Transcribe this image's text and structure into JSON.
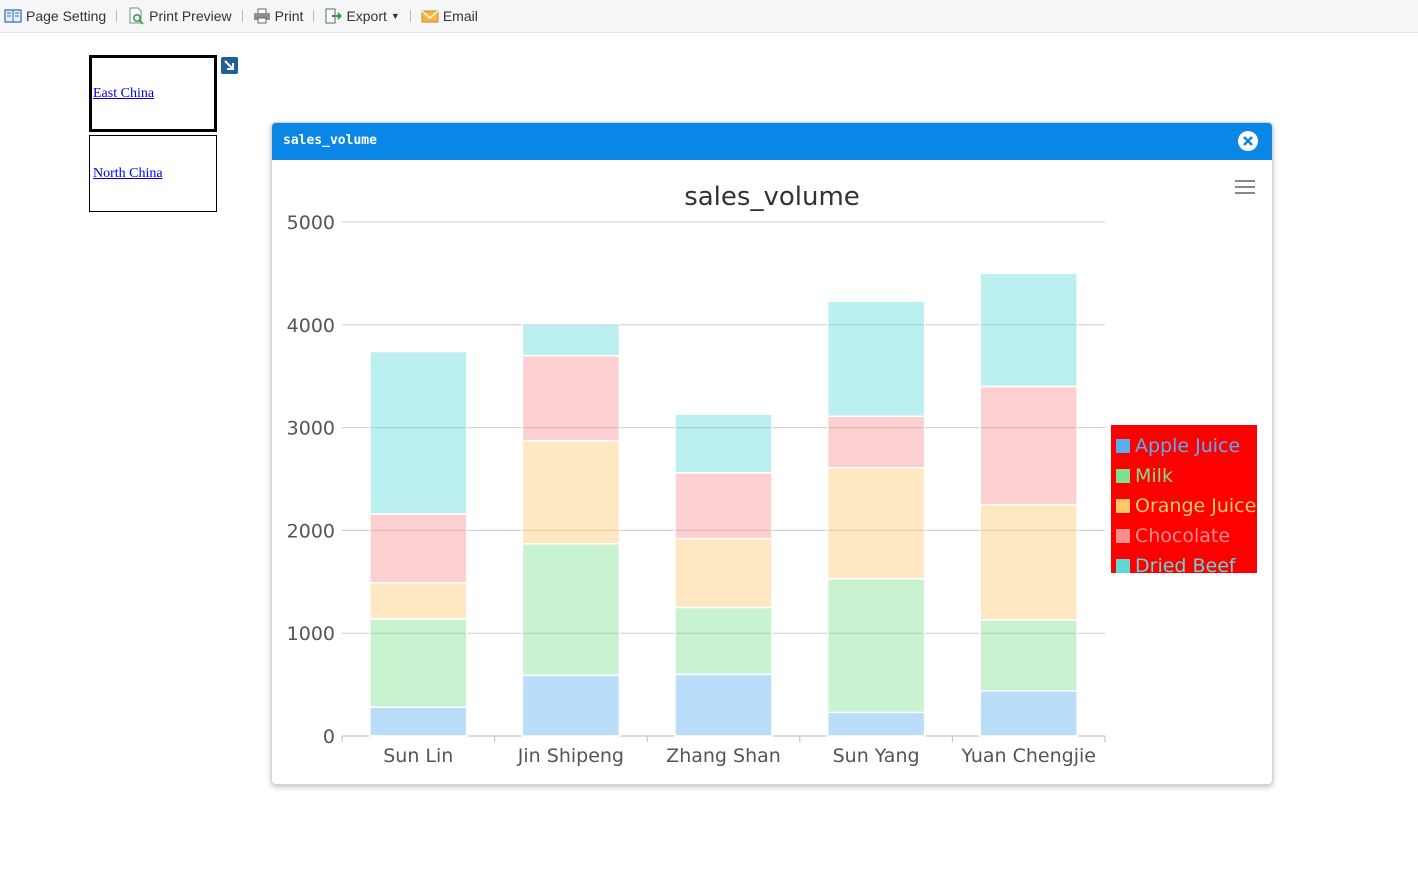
{
  "toolbar": {
    "page_setting": "Page Setting",
    "print_preview": "Print Preview",
    "print": "Print",
    "export": "Export",
    "email": "Email"
  },
  "regions": {
    "items": [
      "East China",
      "North China"
    ],
    "selected": "East China"
  },
  "dialog": {
    "title": "sales_volume"
  },
  "chart_data": {
    "type": "bar",
    "stacked": true,
    "title": "sales_volume",
    "categories": [
      "Sun Lin",
      "Jin Shipeng",
      "Zhang Shan",
      "Sun Yang",
      "Yuan Chengjie"
    ],
    "ylim": [
      0,
      5000
    ],
    "yticks": [
      0,
      1000,
      2000,
      3000,
      4000,
      5000
    ],
    "grid": true,
    "legend_position": "right",
    "legend_background": "#ff0000",
    "series": [
      {
        "name": "Apple Juice",
        "color": "#5aaef0",
        "values": [
          280,
          590,
          600,
          230,
          440
        ]
      },
      {
        "name": "Milk",
        "color": "#7fe08f",
        "values": [
          860,
          1280,
          650,
          1300,
          690
        ]
      },
      {
        "name": "Orange Juice",
        "color": "#fbc96b",
        "values": [
          350,
          1000,
          670,
          1080,
          1120
        ]
      },
      {
        "name": "Chocolate",
        "color": "#f78e8e",
        "values": [
          670,
          830,
          640,
          500,
          1150
        ]
      },
      {
        "name": "Dried Beef",
        "color": "#5fd8d8",
        "values": [
          1580,
          310,
          570,
          1120,
          1100
        ]
      }
    ]
  }
}
